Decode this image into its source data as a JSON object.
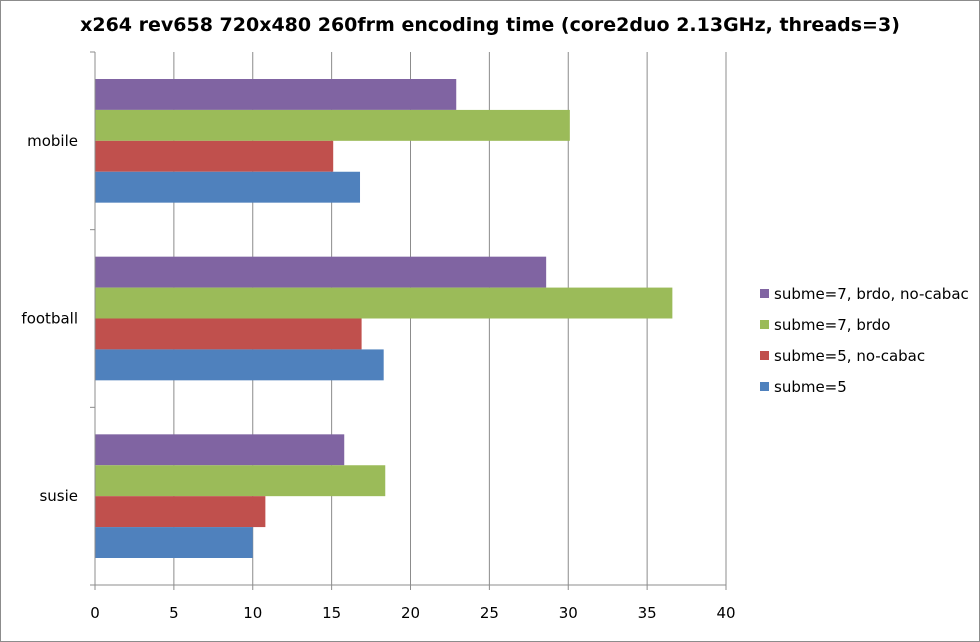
{
  "chart_data": {
    "type": "bar",
    "orientation": "horizontal",
    "title": "x264 rev658 720x480 260frm encoding time (core2duo 2.13GHz, threads=3)",
    "categories": [
      "mobile",
      "football",
      "susie"
    ],
    "xlim": [
      0,
      40
    ],
    "xticks": [
      0,
      5,
      10,
      15,
      20,
      25,
      30,
      35,
      40
    ],
    "grid": "vertical",
    "legend_position": "right",
    "series": [
      {
        "name": "subme=7, brdo, no-cabac",
        "color": "#8064a2",
        "values": [
          22.9,
          28.6,
          15.8
        ]
      },
      {
        "name": "subme=7, brdo",
        "color": "#9bbb59",
        "values": [
          30.1,
          36.6,
          18.4
        ]
      },
      {
        "name": "subme=5, no-cabac",
        "color": "#c0504d",
        "values": [
          15.1,
          16.9,
          10.8
        ]
      },
      {
        "name": "subme=5",
        "color": "#4f81bd",
        "values": [
          16.8,
          18.3,
          10.0
        ]
      }
    ]
  }
}
